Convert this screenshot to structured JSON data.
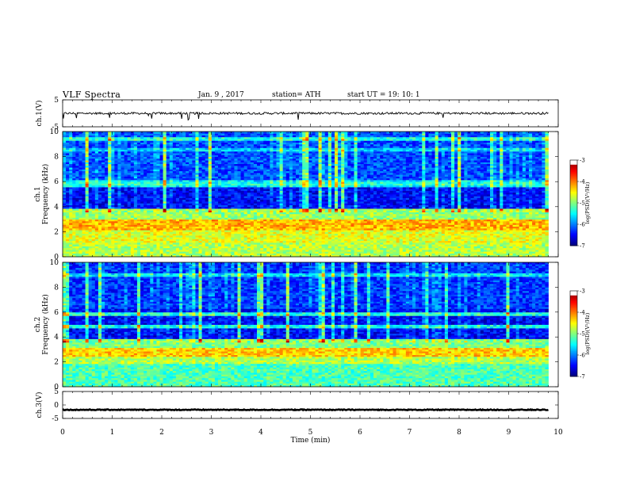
{
  "header": {
    "title": "VLF  Spectra",
    "date": "Jan.  9  , 2017",
    "station": "station= ATH",
    "start_ut": "start  UT  =    19: 10: 1"
  },
  "chart_data": [
    {
      "type": "line",
      "panel": "ch1-waveform",
      "ylabel": "ch.1(V)",
      "ylim": [
        -5,
        5
      ],
      "yticks": [
        {
          "value": 5,
          "label": "5"
        },
        {
          "value": -5,
          "label": "-5"
        }
      ],
      "xlim": [
        0,
        10
      ],
      "series": [
        {
          "baseline": 0,
          "noise_amplitude": 0.4,
          "end_x": 9.8
        }
      ]
    },
    {
      "type": "heatmap",
      "panel": "ch1-spectrogram",
      "ylabel": "ch.1\nFrequency  (kHz)",
      "ylim": [
        0,
        10
      ],
      "yticks": [
        0,
        2,
        4,
        6,
        8,
        10
      ],
      "xlim": [
        0,
        10
      ],
      "data_end_x": 9.8,
      "colorbar": {
        "label": "log(PSD)(V²/Hz)",
        "range": [
          -7,
          -3
        ],
        "ticks": [
          -3,
          -4,
          -5,
          -6,
          -7
        ]
      },
      "bands_khz": [
        {
          "range": [
            0,
            1.2
          ],
          "level": -4.8
        },
        {
          "range": [
            1.2,
            2.2
          ],
          "level": -4.6
        },
        {
          "range": [
            2.2,
            3.0
          ],
          "level": -4.2
        },
        {
          "range": [
            3.0,
            3.9
          ],
          "level": -4.9
        },
        {
          "range": [
            3.9,
            5.6
          ],
          "level": -6.5
        },
        {
          "range": [
            5.6,
            6.1
          ],
          "level": -5.6
        },
        {
          "range": [
            6.1,
            10
          ],
          "level": -6.2
        }
      ],
      "lines_khz": [
        {
          "f": 5.9,
          "level": -5.4
        },
        {
          "f": 9.4,
          "level": -5.4
        },
        {
          "f": 8.6,
          "level": -5.7
        }
      ]
    },
    {
      "type": "heatmap",
      "panel": "ch2-spectrogram",
      "ylabel": "ch.2\nFrequency  (kHz)",
      "ylim": [
        0,
        10
      ],
      "yticks": [
        0,
        2,
        4,
        6,
        8,
        10
      ],
      "xlim": [
        0,
        10
      ],
      "data_end_x": 9.8,
      "colorbar": {
        "label": "log(PSD)(V²/Hz)",
        "range": [
          -7,
          -3
        ],
        "ticks": [
          -3,
          -4,
          -5,
          -6,
          -7
        ]
      },
      "bands_khz": [
        {
          "range": [
            0,
            1.8
          ],
          "level": -5.2
        },
        {
          "range": [
            1.8,
            2.4
          ],
          "level": -4.8
        },
        {
          "range": [
            2.4,
            3.2
          ],
          "level": -4.3
        },
        {
          "range": [
            3.2,
            3.8
          ],
          "level": -5.0
        },
        {
          "range": [
            3.8,
            6.3
          ],
          "level": -6.5
        },
        {
          "range": [
            6.3,
            10
          ],
          "level": -6.3
        }
      ],
      "lines_khz": [
        {
          "f": 5.9,
          "level": -5.4
        },
        {
          "f": 4.9,
          "level": -5.5
        },
        {
          "f": 9.0,
          "level": -5.6
        }
      ]
    },
    {
      "type": "line",
      "panel": "ch3-waveform",
      "ylabel": "ch.3(V)",
      "ylim": [
        -5,
        5
      ],
      "yticks": [
        {
          "value": 5,
          "label": "5"
        },
        {
          "value": 0,
          "label": "0"
        },
        {
          "value": -5,
          "label": "-5"
        }
      ],
      "xlim": [
        0,
        10
      ],
      "series": [
        {
          "baseline": -1.8,
          "noise_amplitude": 0.15,
          "end_x": 9.8
        }
      ]
    }
  ],
  "xaxis": {
    "label": "Time  (min)",
    "ticks": [
      0,
      1,
      2,
      3,
      4,
      5,
      6,
      7,
      8,
      9,
      10
    ]
  }
}
